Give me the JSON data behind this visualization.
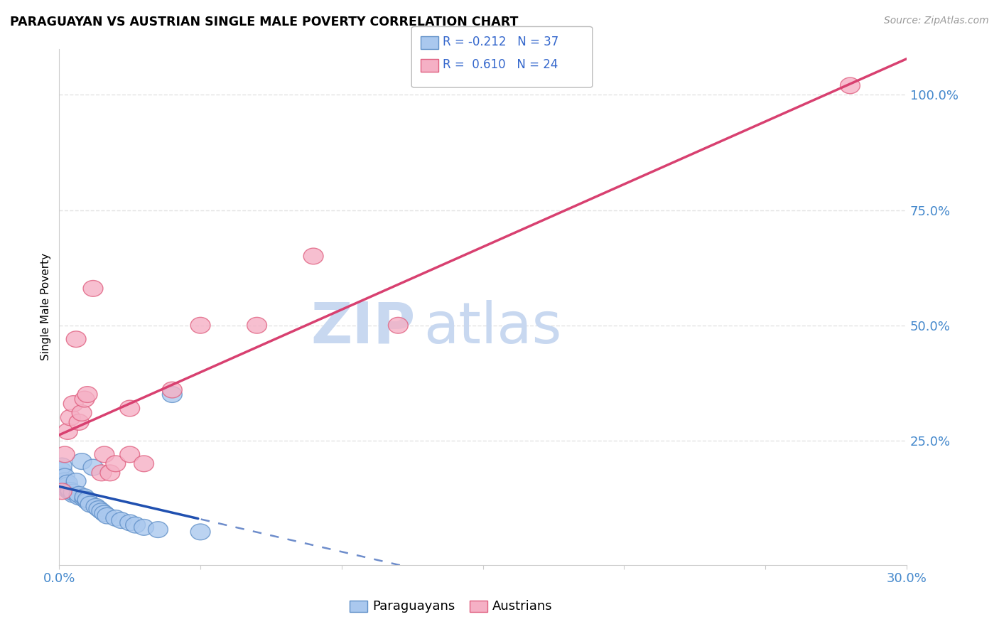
{
  "title": "PARAGUAYAN VS AUSTRIAN SINGLE MALE POVERTY CORRELATION CHART",
  "source": "Source: ZipAtlas.com",
  "ylabel": "Single Male Poverty",
  "xlim": [
    0.0,
    0.3
  ],
  "ylim": [
    -0.02,
    1.1
  ],
  "ytick_positions": [
    0.25,
    0.5,
    0.75,
    1.0
  ],
  "ytick_labels": [
    "25.0%",
    "50.0%",
    "75.0%",
    "100.0%"
  ],
  "paraguayan_color": "#aac8ee",
  "austrian_color": "#f5b0c5",
  "paraguayan_edge": "#6090c8",
  "austrian_edge": "#e06080",
  "regression_blue": "#2050b0",
  "regression_pink": "#d84070",
  "watermark_zip_color": "#ccd8ee",
  "watermark_atlas_color": "#ccd8ee",
  "paraguayan_R": "-0.212",
  "paraguayan_N": "37",
  "austrian_R": "0.610",
  "austrian_N": "24",
  "paraguayan_x": [
    0.001,
    0.001,
    0.001,
    0.002,
    0.002,
    0.002,
    0.003,
    0.003,
    0.003,
    0.003,
    0.004,
    0.004,
    0.005,
    0.005,
    0.006,
    0.007,
    0.007,
    0.008,
    0.009,
    0.009,
    0.01,
    0.01,
    0.011,
    0.012,
    0.013,
    0.014,
    0.015,
    0.016,
    0.017,
    0.02,
    0.022,
    0.025,
    0.027,
    0.03,
    0.035,
    0.04,
    0.05
  ],
  "paraguayan_y": [
    0.175,
    0.185,
    0.195,
    0.158,
    0.163,
    0.172,
    0.143,
    0.148,
    0.153,
    0.158,
    0.138,
    0.142,
    0.133,
    0.138,
    0.162,
    0.128,
    0.133,
    0.205,
    0.123,
    0.128,
    0.118,
    0.122,
    0.112,
    0.192,
    0.107,
    0.102,
    0.097,
    0.092,
    0.087,
    0.082,
    0.077,
    0.072,
    0.067,
    0.062,
    0.057,
    0.35,
    0.052
  ],
  "austrian_x": [
    0.001,
    0.002,
    0.003,
    0.004,
    0.005,
    0.006,
    0.007,
    0.008,
    0.009,
    0.01,
    0.012,
    0.015,
    0.016,
    0.018,
    0.02,
    0.025,
    0.025,
    0.03,
    0.04,
    0.05,
    0.07,
    0.09,
    0.12,
    0.28
  ],
  "austrian_y": [
    0.14,
    0.22,
    0.27,
    0.3,
    0.33,
    0.47,
    0.29,
    0.31,
    0.34,
    0.35,
    0.58,
    0.18,
    0.22,
    0.18,
    0.2,
    0.22,
    0.32,
    0.2,
    0.36,
    0.5,
    0.5,
    0.65,
    0.5,
    1.02
  ],
  "background_color": "#ffffff",
  "grid_color": "#dddddd",
  "tick_color": "#4488cc",
  "axis_label_color": "#000000"
}
